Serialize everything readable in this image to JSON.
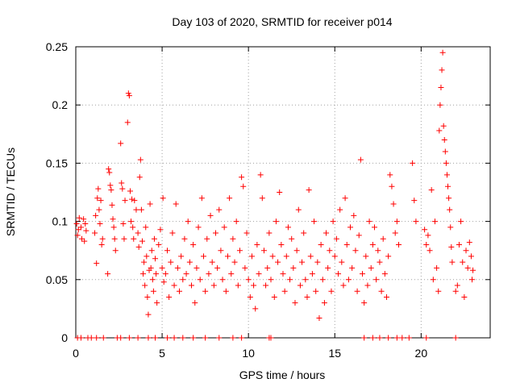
{
  "chart_data": {
    "type": "scatter",
    "title": "Day 103 of 2020, SRMTID for receiver p014",
    "xlabel": "GPS time / hours",
    "ylabel": "SRMTID / TECUs",
    "xlim": [
      0,
      24
    ],
    "ylim": [
      0,
      0.25
    ],
    "xticks": [
      "0",
      "5",
      "10",
      "15",
      "20"
    ],
    "yticks": [
      "0",
      "0.05",
      "0.1",
      "0.15",
      "0.2",
      "0.25"
    ],
    "grid": true,
    "marker": "plus",
    "color": "#ff0000",
    "series": [
      {
        "name": "SRMTID",
        "points": [
          [
            0.05,
            0.098
          ],
          [
            0.1,
            0.088
          ],
          [
            0.15,
            0.093
          ],
          [
            0.2,
            0.103
          ],
          [
            0.3,
            0.095
          ],
          [
            0.35,
            0.085
          ],
          [
            0.45,
            0.102
          ],
          [
            0.5,
            0.083
          ],
          [
            0.55,
            0.098
          ],
          [
            0.6,
            0.092
          ],
          [
            1.1,
            0.09
          ],
          [
            1.15,
            0.105
          ],
          [
            1.2,
            0.064
          ],
          [
            1.25,
            0.12
          ],
          [
            1.3,
            0.128
          ],
          [
            1.35,
            0.11
          ],
          [
            1.4,
            0.098
          ],
          [
            1.45,
            0.118
          ],
          [
            1.5,
            0.08
          ],
          [
            1.55,
            0.085
          ],
          [
            1.9,
            0.145
          ],
          [
            1.95,
            0.142
          ],
          [
            2.0,
            0.131
          ],
          [
            2.05,
            0.127
          ],
          [
            2.1,
            0.114
          ],
          [
            2.15,
            0.102
          ],
          [
            2.2,
            0.095
          ],
          [
            2.25,
            0.085
          ],
          [
            1.85,
            0.055
          ],
          [
            2.3,
            0.075
          ],
          [
            2.6,
            0.167
          ],
          [
            2.65,
            0.133
          ],
          [
            2.7,
            0.128
          ],
          [
            2.75,
            0.098
          ],
          [
            2.8,
            0.085
          ],
          [
            2.85,
            0.118
          ],
          [
            3.0,
            0.185
          ],
          [
            3.05,
            0.21
          ],
          [
            3.1,
            0.208
          ],
          [
            3.15,
            0.126
          ],
          [
            3.2,
            0.1
          ],
          [
            3.25,
            0.119
          ],
          [
            3.3,
            0.095
          ],
          [
            3.35,
            0.085
          ],
          [
            3.4,
            0.118
          ],
          [
            3.5,
            0.11
          ],
          [
            3.6,
            0.09
          ],
          [
            3.65,
            0.078
          ],
          [
            3.7,
            0.138
          ],
          [
            3.75,
            0.153
          ],
          [
            3.8,
            0.11
          ],
          [
            3.85,
            0.083
          ],
          [
            3.9,
            0.055
          ],
          [
            3.95,
            0.065
          ],
          [
            4.0,
            0.045
          ],
          [
            4.05,
            0.095
          ],
          [
            4.1,
            0.07
          ],
          [
            4.15,
            0.035
          ],
          [
            4.2,
            0.02
          ],
          [
            4.25,
            0.058
          ],
          [
            4.3,
            0.115
          ],
          [
            4.35,
            0.06
          ],
          [
            4.4,
            0.075
          ],
          [
            4.45,
            0.05
          ],
          [
            4.5,
            0.04
          ],
          [
            4.55,
            0.085
          ],
          [
            4.6,
            0.068
          ],
          [
            4.65,
            0.055
          ],
          [
            4.7,
            0.03
          ],
          [
            4.8,
            0.08
          ],
          [
            4.9,
            0.093
          ],
          [
            5.0,
            0.06
          ],
          [
            5.05,
            0.12
          ],
          [
            5.1,
            0.048
          ],
          [
            5.2,
            0.055
          ],
          [
            5.3,
            0.075
          ],
          [
            5.4,
            0.035
          ],
          [
            5.5,
            0.065
          ],
          [
            5.6,
            0.09
          ],
          [
            5.7,
            0.045
          ],
          [
            5.8,
            0.115
          ],
          [
            5.9,
            0.06
          ],
          [
            6.0,
            0.04
          ],
          [
            6.1,
            0.07
          ],
          [
            6.2,
            0.05
          ],
          [
            6.3,
            0.085
          ],
          [
            6.4,
            0.055
          ],
          [
            6.5,
            0.1
          ],
          [
            6.6,
            0.065
          ],
          [
            6.7,
            0.045
          ],
          [
            6.8,
            0.08
          ],
          [
            6.9,
            0.03
          ],
          [
            7.0,
            0.06
          ],
          [
            7.1,
            0.095
          ],
          [
            7.2,
            0.05
          ],
          [
            7.3,
            0.12
          ],
          [
            7.4,
            0.07
          ],
          [
            7.5,
            0.04
          ],
          [
            7.6,
            0.085
          ],
          [
            7.7,
            0.055
          ],
          [
            7.8,
            0.105
          ],
          [
            7.9,
            0.065
          ],
          [
            8.0,
            0.045
          ],
          [
            8.1,
            0.09
          ],
          [
            8.2,
            0.06
          ],
          [
            8.3,
            0.11
          ],
          [
            8.4,
            0.075
          ],
          [
            8.5,
            0.05
          ],
          [
            8.6,
            0.095
          ],
          [
            8.7,
            0.04
          ],
          [
            8.8,
            0.07
          ],
          [
            8.9,
            0.12
          ],
          [
            9.0,
            0.055
          ],
          [
            9.1,
            0.085
          ],
          [
            9.2,
            0.065
          ],
          [
            9.3,
            0.1
          ],
          [
            9.4,
            0.045
          ],
          [
            9.5,
            0.075
          ],
          [
            9.6,
            0.138
          ],
          [
            9.7,
            0.13
          ],
          [
            9.8,
            0.06
          ],
          [
            9.9,
            0.09
          ],
          [
            10.0,
            0.05
          ],
          [
            10.1,
            0.035
          ],
          [
            10.2,
            0.07
          ],
          [
            10.3,
            0.045
          ],
          [
            10.4,
            0.025
          ],
          [
            10.5,
            0.08
          ],
          [
            10.6,
            0.055
          ],
          [
            10.7,
            0.14
          ],
          [
            10.8,
            0.12
          ],
          [
            10.9,
            0.075
          ],
          [
            11.0,
            0.045
          ],
          [
            11.1,
            0.06
          ],
          [
            11.2,
            0.09
          ],
          [
            11.3,
            0.05
          ],
          [
            11.4,
            0.07
          ],
          [
            11.5,
            0.035
          ],
          [
            11.6,
            0.1
          ],
          [
            11.7,
            0.065
          ],
          [
            11.8,
            0.125
          ],
          [
            11.9,
            0.08
          ],
          [
            12.0,
            0.055
          ],
          [
            12.1,
            0.04
          ],
          [
            12.2,
            0.07
          ],
          [
            12.3,
            0.095
          ],
          [
            12.4,
            0.05
          ],
          [
            12.5,
            0.085
          ],
          [
            12.6,
            0.06
          ],
          [
            12.7,
            0.03
          ],
          [
            12.8,
            0.075
          ],
          [
            12.9,
            0.11
          ],
          [
            13.0,
            0.045
          ],
          [
            13.1,
            0.065
          ],
          [
            13.2,
            0.09
          ],
          [
            13.3,
            0.05
          ],
          [
            13.4,
            0.035
          ],
          [
            13.5,
            0.127
          ],
          [
            13.6,
            0.07
          ],
          [
            13.7,
            0.055
          ],
          [
            13.8,
            0.1
          ],
          [
            13.9,
            0.04
          ],
          [
            14.0,
            0.065
          ],
          [
            14.1,
            0.017
          ],
          [
            14.2,
            0.08
          ],
          [
            14.3,
            0.05
          ],
          [
            14.4,
            0.03
          ],
          [
            14.5,
            0.09
          ],
          [
            14.6,
            0.06
          ],
          [
            14.7,
            0.075
          ],
          [
            14.8,
            0.04
          ],
          [
            14.9,
            0.1
          ],
          [
            15.0,
            0.07
          ],
          [
            15.1,
            0.085
          ],
          [
            15.2,
            0.055
          ],
          [
            15.3,
            0.11
          ],
          [
            15.4,
            0.065
          ],
          [
            15.5,
            0.045
          ],
          [
            15.6,
            0.12
          ],
          [
            15.7,
            0.08
          ],
          [
            15.8,
            0.05
          ],
          [
            15.9,
            0.095
          ],
          [
            16.0,
            0.06
          ],
          [
            16.1,
            0.105
          ],
          [
            16.2,
            0.075
          ],
          [
            16.3,
            0.04
          ],
          [
            16.4,
            0.088
          ],
          [
            16.5,
            0.153
          ],
          [
            16.6,
            0.055
          ],
          [
            16.7,
            0.03
          ],
          [
            16.8,
            0.07
          ],
          [
            16.9,
            0.045
          ],
          [
            17.0,
            0.1
          ],
          [
            17.1,
            0.06
          ],
          [
            17.2,
            0.08
          ],
          [
            17.3,
            0.095
          ],
          [
            17.4,
            0.05
          ],
          [
            17.5,
            0.075
          ],
          [
            17.6,
            0.065
          ],
          [
            17.7,
            0.04
          ],
          [
            17.8,
            0.085
          ],
          [
            17.9,
            0.055
          ],
          [
            18.0,
            0.035
          ],
          [
            18.1,
            0.07
          ],
          [
            18.2,
            0.14
          ],
          [
            18.3,
            0.13
          ],
          [
            18.4,
            0.115
          ],
          [
            18.5,
            0.09
          ],
          [
            18.6,
            0.1
          ],
          [
            18.7,
            0.08
          ],
          [
            19.5,
            0.15
          ],
          [
            19.6,
            0.118
          ],
          [
            19.7,
            0.1
          ],
          [
            20.2,
            0.093
          ],
          [
            20.3,
            0.08
          ],
          [
            20.4,
            0.088
          ],
          [
            20.5,
            0.075
          ],
          [
            20.6,
            0.127
          ],
          [
            20.7,
            0.05
          ],
          [
            20.8,
            0.1
          ],
          [
            20.9,
            0.06
          ],
          [
            21.0,
            0.04
          ],
          [
            21.05,
            0.178
          ],
          [
            21.1,
            0.2
          ],
          [
            21.15,
            0.215
          ],
          [
            21.2,
            0.23
          ],
          [
            21.25,
            0.245
          ],
          [
            21.3,
            0.182
          ],
          [
            21.35,
            0.17
          ],
          [
            21.4,
            0.16
          ],
          [
            21.45,
            0.15
          ],
          [
            21.5,
            0.14
          ],
          [
            21.55,
            0.13
          ],
          [
            21.6,
            0.12
          ],
          [
            21.65,
            0.11
          ],
          [
            21.7,
            0.095
          ],
          [
            21.75,
            0.078
          ],
          [
            21.8,
            0.065
          ],
          [
            22.0,
            0.04
          ],
          [
            22.1,
            0.045
          ],
          [
            22.2,
            0.08
          ],
          [
            22.3,
            0.1
          ],
          [
            22.4,
            0.065
          ],
          [
            22.5,
            0.035
          ],
          [
            22.6,
            0.075
          ],
          [
            22.7,
            0.06
          ],
          [
            22.8,
            0.082
          ],
          [
            22.9,
            0.07
          ],
          [
            22.95,
            0.05
          ],
          [
            23.0,
            0.058
          ],
          [
            0.1,
            0.0
          ],
          [
            0.3,
            0.0
          ],
          [
            0.7,
            0.0
          ],
          [
            0.9,
            0.0
          ],
          [
            1.2,
            0.0
          ],
          [
            1.6,
            0.0
          ],
          [
            2.4,
            0.0
          ],
          [
            2.6,
            0.0
          ],
          [
            3.1,
            0.0
          ],
          [
            3.6,
            0.0
          ],
          [
            4.2,
            0.0
          ],
          [
            4.6,
            0.0
          ],
          [
            5.3,
            0.0
          ],
          [
            5.7,
            0.0
          ],
          [
            6.2,
            0.0
          ],
          [
            6.8,
            0.0
          ],
          [
            7.5,
            0.0
          ],
          [
            8.3,
            0.0
          ],
          [
            9.1,
            0.0
          ],
          [
            9.6,
            0.0
          ],
          [
            11.2,
            0.0
          ],
          [
            11.3,
            0.0
          ],
          [
            16.7,
            0.0
          ],
          [
            17.2,
            0.0
          ],
          [
            17.6,
            0.0
          ],
          [
            18.1,
            0.0
          ],
          [
            18.6,
            0.0
          ],
          [
            18.9,
            0.0
          ],
          [
            19.3,
            0.0
          ],
          [
            20.3,
            0.0
          ],
          [
            22.0,
            0.0
          ]
        ]
      }
    ]
  }
}
